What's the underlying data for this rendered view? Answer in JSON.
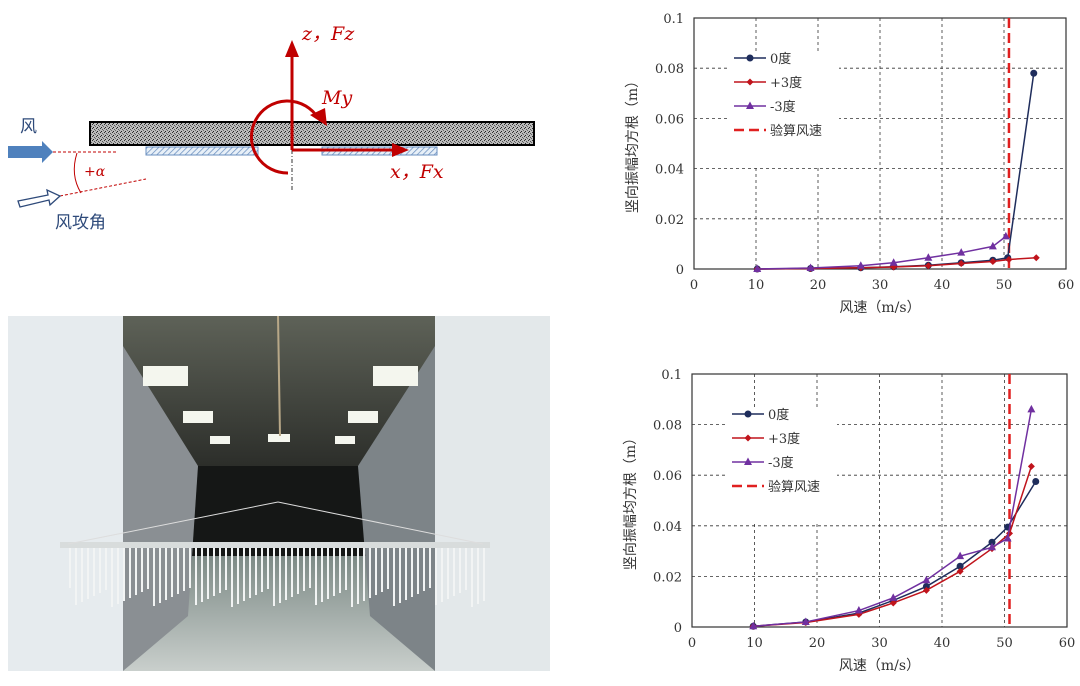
{
  "diagram": {
    "z_label": "z，Fz",
    "x_label": "x，Fx",
    "moment_label": "My",
    "wind_label": "风",
    "angle_label": "+α",
    "attack_angle_label": "风攻角",
    "colors": {
      "force": "#c00000",
      "wind": "#4f81bd"
    }
  },
  "photo": {
    "subject": "wind-tunnel-model-photo"
  },
  "chart_data": [
    {
      "type": "line",
      "xlabel": "风速（m/s）",
      "ylabel": "竖向振幅均方根（m）",
      "xlim": [
        0,
        60
      ],
      "ylim": [
        0,
        0.1
      ],
      "xticks": [
        "0",
        "10",
        "20",
        "30",
        "40",
        "50",
        "60"
      ],
      "yticks": [
        "0",
        "0.02",
        "0.04",
        "0.06",
        "0.08",
        "0.1"
      ],
      "grid": true,
      "legend": "top-left",
      "series": [
        {
          "name": "0度",
          "color": "#1f2d5c",
          "marker": "circle",
          "x": [
            10.2,
            18.8,
            26.9,
            32.2,
            37.8,
            43.1,
            48.2,
            50.6,
            54.8
          ],
          "y": [
            0,
            0.0002,
            0.0005,
            0.0009,
            0.0015,
            0.0025,
            0.0035,
            0.0045,
            0.078
          ]
        },
        {
          "name": "+3度",
          "color": "#c0141c",
          "marker": "diamond",
          "x": [
            10.2,
            18.8,
            26.9,
            32.2,
            37.8,
            43.1,
            48.2,
            50.8,
            55.2
          ],
          "y": [
            0,
            0.0002,
            0.0005,
            0.0008,
            0.0013,
            0.0022,
            0.003,
            0.0038,
            0.0045
          ]
        },
        {
          "name": "-3度",
          "color": "#7030a0",
          "marker": "triangle",
          "x": [
            10.2,
            18.8,
            26.9,
            32.2,
            37.8,
            43.1,
            48.2,
            50.3
          ],
          "y": [
            0,
            0.0004,
            0.0013,
            0.0025,
            0.0045,
            0.0065,
            0.009,
            0.013
          ]
        }
      ],
      "reference_line": {
        "name": "验算风速",
        "x": 50.8,
        "color": "#e02020"
      }
    },
    {
      "type": "line",
      "xlabel": "风速（m/s）",
      "ylabel": "竖向振幅均方根（m）",
      "xlim": [
        0,
        60
      ],
      "ylim": [
        0,
        0.1
      ],
      "xticks": [
        "0",
        "10",
        "20",
        "30",
        "40",
        "50",
        "60"
      ],
      "yticks": [
        "0",
        "0.02",
        "0.04",
        "0.06",
        "0.08",
        "0.1"
      ],
      "grid": true,
      "legend": "top-left",
      "series": [
        {
          "name": "0度",
          "color": "#1f2d5c",
          "marker": "circle",
          "x": [
            9.8,
            18.2,
            26.7,
            32.2,
            37.5,
            42.9,
            48.0,
            50.5,
            55.0
          ],
          "y": [
            0.0003,
            0.002,
            0.0055,
            0.0105,
            0.016,
            0.024,
            0.0335,
            0.0395,
            0.0575
          ]
        },
        {
          "name": "+3度",
          "color": "#c0141c",
          "marker": "diamond",
          "x": [
            9.8,
            18.2,
            26.7,
            32.2,
            37.5,
            42.9,
            48.0,
            50.8,
            54.3
          ],
          "y": [
            0.0003,
            0.0018,
            0.005,
            0.0095,
            0.0145,
            0.022,
            0.031,
            0.037,
            0.0635
          ]
        },
        {
          "name": "-3度",
          "color": "#7030a0",
          "marker": "triangle",
          "x": [
            9.8,
            18.2,
            26.7,
            32.2,
            37.5,
            42.9,
            48.0,
            50.5,
            54.3
          ],
          "y": [
            0.0003,
            0.002,
            0.0065,
            0.0115,
            0.0185,
            0.028,
            0.0315,
            0.035,
            0.086
          ]
        }
      ],
      "reference_line": {
        "name": "验算风速",
        "x": 50.8,
        "color": "#e02020"
      }
    }
  ]
}
